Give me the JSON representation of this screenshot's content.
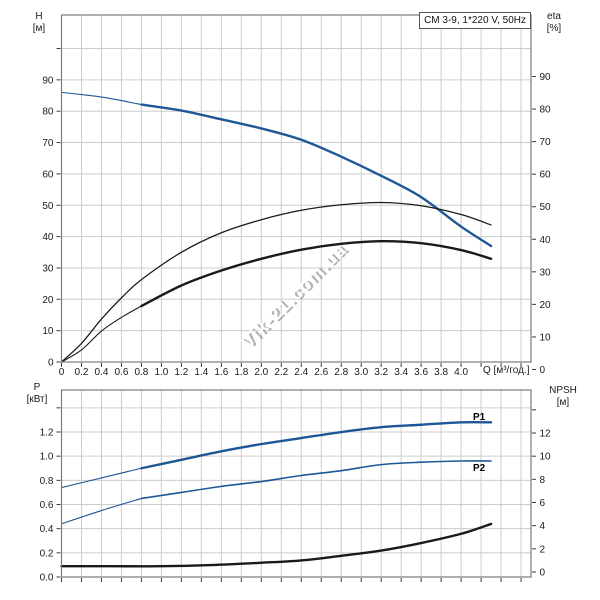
{
  "watermark": "Vik-21.com.ua",
  "colors": {
    "curve_blue": "#1e5796",
    "curve_black": "#1a1a1a",
    "grid": "#cccccc",
    "axis_border": "#7a7a7a",
    "tick": "#3a3a3a",
    "label_text": "#1a1a1a",
    "watermark_shadow": "#9a9a9a"
  },
  "chart_data": [
    {
      "type": "line",
      "title": "CM 3-9, 1*220 V, 50Hz",
      "x_axis": {
        "name": "Q [м³/год.]",
        "lim": [
          0,
          4.7
        ],
        "ticks": [
          "0",
          "0.2",
          "0.4",
          "0.6",
          "0.8",
          "1.0",
          "1.2",
          "1.4",
          "1.6",
          "1.8",
          "2.0",
          "2.2",
          "2.4",
          "2.6",
          "2.8",
          "3.0",
          "3.2",
          "3.4",
          "3.6",
          "3.8",
          "4.0"
        ]
      },
      "left_axis": {
        "name": "H",
        "unit": "[м]",
        "lim": [
          0,
          110.7
        ],
        "ticks": [
          "0",
          "10",
          "20",
          "30",
          "40",
          "50",
          "60",
          "70",
          "80",
          "90"
        ]
      },
      "right_axis": {
        "name": "eta",
        "unit": "[%]",
        "lim": [
          0,
          109
        ],
        "ticks": [
          "0",
          "10",
          "20",
          "30",
          "40",
          "50",
          "60",
          "70",
          "80",
          "90"
        ]
      },
      "grid": true,
      "series": [
        {
          "name": "H",
          "axis": "left",
          "color": "#1e5796",
          "weight": "bold",
          "bold_from": 0.8,
          "points": [
            [
              0,
              86
            ],
            [
              0.2,
              85.3
            ],
            [
              0.4,
              84.5
            ],
            [
              0.6,
              83.4
            ],
            [
              0.8,
              82.1
            ],
            [
              1.2,
              80.2
            ],
            [
              1.6,
              77.4
            ],
            [
              2.0,
              74.5
            ],
            [
              2.4,
              70.9
            ],
            [
              2.8,
              65.5
            ],
            [
              3.2,
              59.4
            ],
            [
              3.6,
              52.6
            ],
            [
              4.0,
              43.2
            ],
            [
              4.3,
              37
            ]
          ]
        },
        {
          "name": "eta",
          "axis": "right",
          "color": "#1a1a1a",
          "weight": "thin",
          "points": [
            [
              0,
              0
            ],
            [
              0.2,
              8
            ],
            [
              0.4,
              15.5
            ],
            [
              0.6,
              22
            ],
            [
              0.8,
              27.6
            ],
            [
              1.2,
              36
            ],
            [
              1.6,
              42
            ],
            [
              2.0,
              46
            ],
            [
              2.4,
              48.9
            ],
            [
              2.8,
              50.6
            ],
            [
              3.2,
              51.3
            ],
            [
              3.6,
              50.3
            ],
            [
              4.0,
              47.6
            ],
            [
              4.3,
              44.4
            ]
          ]
        },
        {
          "name": "eta2",
          "axis": "right",
          "color": "#1a1a1a",
          "weight": "bold",
          "bold_from": 0.8,
          "points": [
            [
              0,
              0
            ],
            [
              0.2,
              6
            ],
            [
              0.4,
              11.8
            ],
            [
              0.6,
              16
            ],
            [
              0.8,
              19.5
            ],
            [
              1.2,
              25.8
            ],
            [
              1.6,
              30.4
            ],
            [
              2.0,
              34
            ],
            [
              2.4,
              36.8
            ],
            [
              2.8,
              38.6
            ],
            [
              3.2,
              39.4
            ],
            [
              3.6,
              38.8
            ],
            [
              4.0,
              36.7
            ],
            [
              4.3,
              34
            ]
          ]
        }
      ]
    },
    {
      "type": "line",
      "title": "",
      "x_axis": {
        "name": "",
        "lim": [
          0,
          4.7
        ],
        "ticks": []
      },
      "left_axis": {
        "name": "P",
        "unit": "[кВт]",
        "lim": [
          0,
          1.55
        ],
        "ticks": [
          "0.0",
          "0.2",
          "0.4",
          "0.6",
          "0.8",
          "1.0",
          "1.2"
        ]
      },
      "right_axis": {
        "name": "NPSH",
        "unit": "[м]",
        "lim": [
          0,
          15.7
        ],
        "ticks": [
          "0",
          "2",
          "4",
          "6",
          "8",
          "10",
          "12"
        ]
      },
      "grid": true,
      "series": [
        {
          "name": "P1",
          "label": "P1",
          "axis": "left",
          "color": "#1e5796",
          "weight": "bold",
          "bold_from": 0.8,
          "points": [
            [
              0,
              0.74
            ],
            [
              0.4,
              0.82
            ],
            [
              0.8,
              0.9
            ],
            [
              1.2,
              0.97
            ],
            [
              1.6,
              1.04
            ],
            [
              2.0,
              1.1
            ],
            [
              2.4,
              1.15
            ],
            [
              2.8,
              1.2
            ],
            [
              3.2,
              1.24
            ],
            [
              3.6,
              1.26
            ],
            [
              4.0,
              1.28
            ],
            [
              4.3,
              1.28
            ]
          ]
        },
        {
          "name": "P2",
          "label": "P2",
          "axis": "left",
          "color": "#1e5796",
          "weight": "medium",
          "bold_from": 0.8,
          "points": [
            [
              0,
              0.44
            ],
            [
              0.4,
              0.55
            ],
            [
              0.8,
              0.65
            ],
            [
              1.2,
              0.7
            ],
            [
              1.6,
              0.75
            ],
            [
              2.0,
              0.79
            ],
            [
              2.4,
              0.84
            ],
            [
              2.8,
              0.88
            ],
            [
              3.2,
              0.93
            ],
            [
              3.6,
              0.95
            ],
            [
              4.0,
              0.96
            ],
            [
              4.3,
              0.96
            ]
          ]
        },
        {
          "name": "NPSH",
          "axis": "right",
          "color": "#1a1a1a",
          "weight": "bold",
          "points": [
            [
              0,
              0.5
            ],
            [
              0.5,
              0.5
            ],
            [
              1.0,
              0.5
            ],
            [
              1.5,
              0.6
            ],
            [
              2.0,
              0.8
            ],
            [
              2.4,
              1.0
            ],
            [
              2.8,
              1.4
            ],
            [
              3.2,
              1.85
            ],
            [
              3.6,
              2.5
            ],
            [
              4.0,
              3.3
            ],
            [
              4.3,
              4.15
            ]
          ]
        }
      ]
    }
  ]
}
